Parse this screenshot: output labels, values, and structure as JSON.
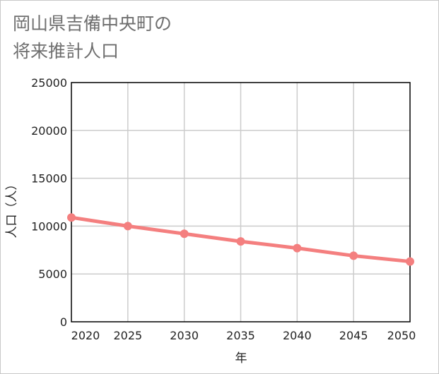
{
  "title_lines": [
    "岡山県吉備中央町の",
    "将来推計人口"
  ],
  "chart_data": {
    "type": "line",
    "title": "岡山県吉備中央町の将来推計人口",
    "xlabel": "年",
    "ylabel": "人口（人）",
    "x": [
      2020,
      2025,
      2030,
      2035,
      2040,
      2045,
      2050
    ],
    "series": [
      {
        "name": "将来推計人口",
        "values": [
          10900,
          10000,
          9200,
          8400,
          7700,
          6900,
          6300
        ]
      }
    ],
    "xlim": [
      2020,
      2050
    ],
    "ylim": [
      0,
      25000
    ],
    "x_ticks": [
      2020,
      2025,
      2030,
      2035,
      2040,
      2045,
      2050
    ],
    "y_ticks": [
      0,
      5000,
      10000,
      15000,
      20000,
      25000
    ],
    "grid": true,
    "line_color": "#f47f7f",
    "grid_color": "#cccccc",
    "title_color": "#6e6e6e"
  }
}
